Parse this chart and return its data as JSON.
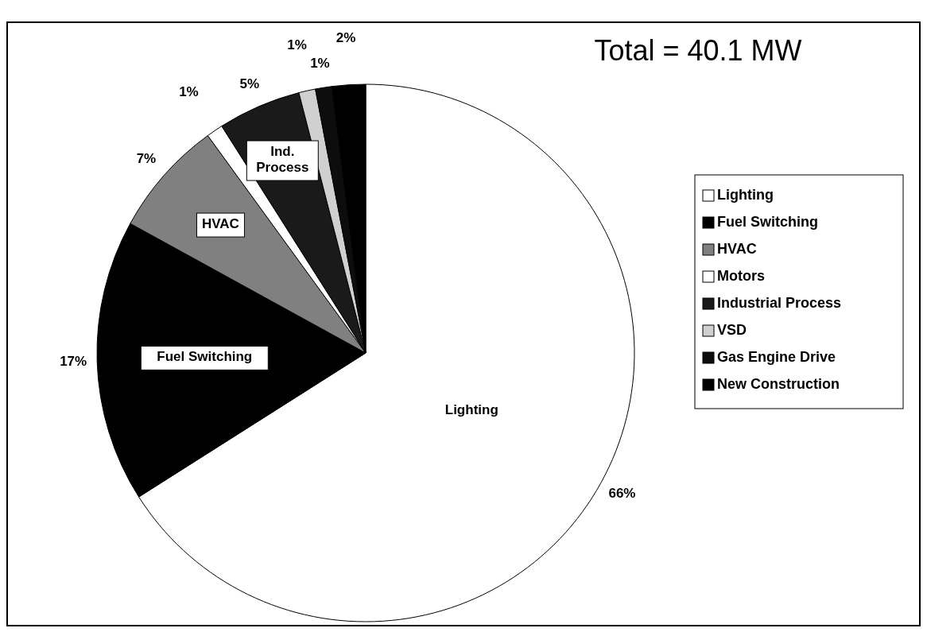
{
  "chart_data": {
    "type": "pie",
    "title": "Total = 40.1 MW",
    "categories": [
      "Lighting",
      "Fuel Switching",
      "HVAC",
      "Motors",
      "Industrial Process",
      "VSD",
      "Gas Engine Drive",
      "New Construction"
    ],
    "values": [
      66,
      17,
      7,
      1,
      5,
      1,
      1,
      2
    ],
    "colors": [
      "#ffffff",
      "#000000",
      "#808080",
      "#ffffff",
      "#1a1a1a",
      "#d0d0d0",
      "#0d0d0d",
      "#000000"
    ],
    "value_labels": [
      "66%",
      "17%",
      "7%",
      "1%",
      "5%",
      "1%",
      "1%",
      "2%"
    ],
    "annotations": [
      "Lighting",
      "Fuel Switching",
      "HVAC",
      "Ind. Process"
    ],
    "legend": "right"
  }
}
